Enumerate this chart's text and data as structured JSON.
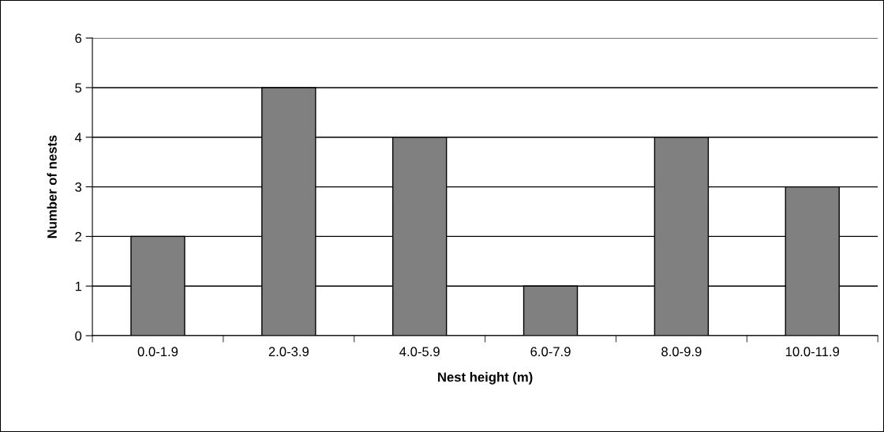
{
  "chart_data": {
    "type": "bar",
    "categories": [
      "0.0-1.9",
      "2.0-3.9",
      "4.0-5.9",
      "6.0-7.9",
      "8.0-9.9",
      "10.0-11.9"
    ],
    "values": [
      2,
      5,
      4,
      1,
      4,
      3
    ],
    "color": "#808080",
    "xlabel": "Nest height (m)",
    "ylabel": "Number of nests",
    "ylim": [
      0,
      6
    ],
    "yticks": [
      0,
      1,
      2,
      3,
      4,
      5,
      6
    ],
    "grid": "y"
  }
}
